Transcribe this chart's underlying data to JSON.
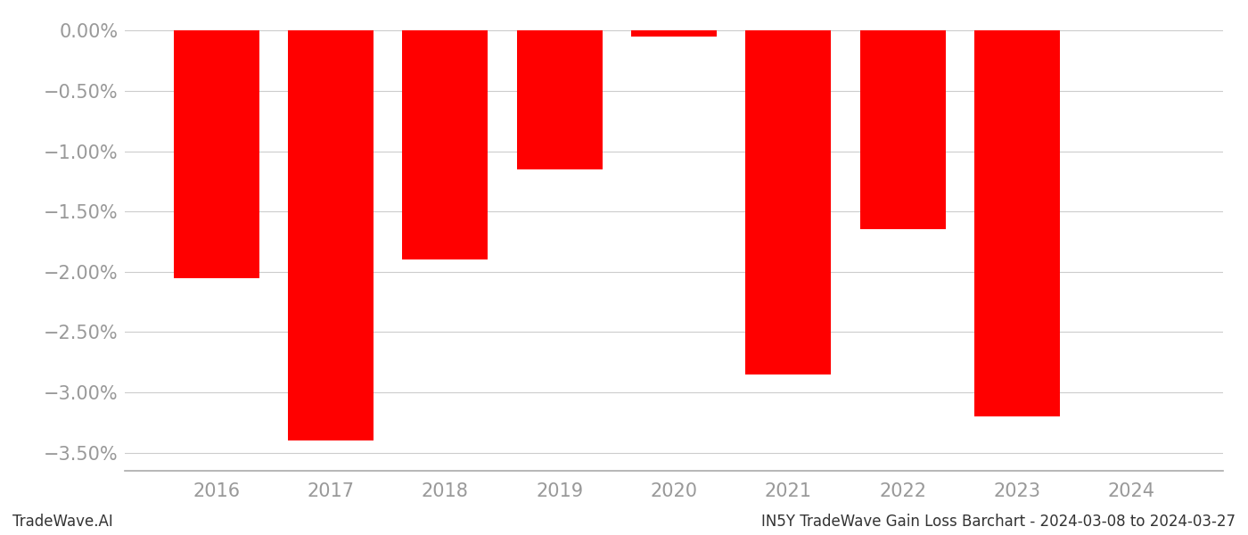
{
  "years": [
    2016,
    2017,
    2018,
    2019,
    2020,
    2021,
    2022,
    2023,
    2024
  ],
  "values": [
    -2.05,
    -3.4,
    -1.9,
    -1.15,
    -0.05,
    -2.85,
    -1.65,
    -3.2,
    0.0
  ],
  "bar_color": "#FF0000",
  "ylim": [
    -3.65,
    0.12
  ],
  "yticks": [
    0.0,
    -0.5,
    -1.0,
    -1.5,
    -2.0,
    -2.5,
    -3.0,
    -3.5
  ],
  "ytick_labels": [
    "0.00%",
    "−0.50%",
    "−1.00%",
    "−1.50%",
    "−2.00%",
    "−2.50%",
    "−3.00%",
    "−3.50%"
  ],
  "grid_color": "#cccccc",
  "background_color": "#ffffff",
  "footer_left": "TradeWave.AI",
  "footer_right": "IN5Y TradeWave Gain Loss Barchart - 2024-03-08 to 2024-03-27",
  "footer_fontsize": 12,
  "tick_label_color": "#999999",
  "tick_label_fontsize": 15,
  "bar_width": 0.75,
  "xlim": [
    2015.2,
    2024.8
  ]
}
